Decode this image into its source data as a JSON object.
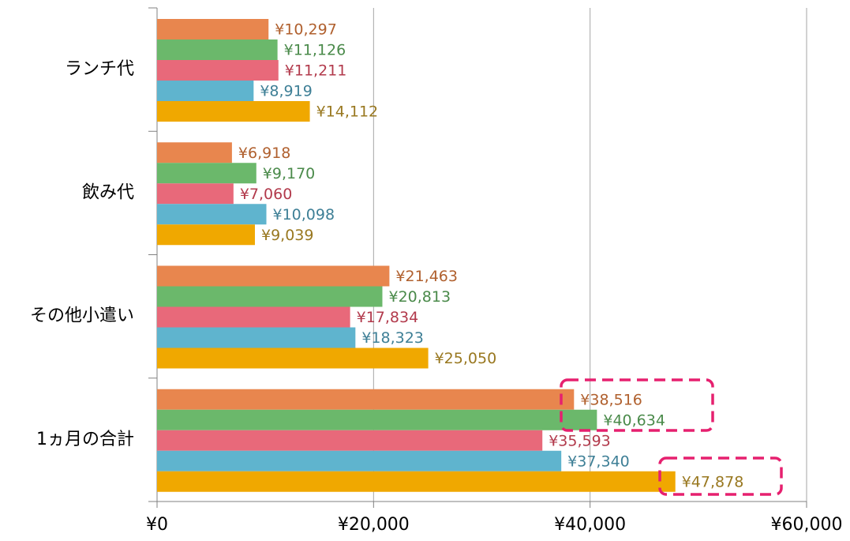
{
  "chart_data": {
    "type": "hbar",
    "categories": [
      "ランチ代",
      "飲み代",
      "その他小遣い",
      "1ヵ月の合計"
    ],
    "series": [
      {
        "color": "#E8864E",
        "label_color": "#B0602E",
        "values": [
          10297,
          6918,
          21463,
          38516
        ],
        "value_labels": [
          "¥10,297",
          "¥6,918",
          "¥21,463",
          "¥38,516"
        ]
      },
      {
        "color": "#6BB86B",
        "label_color": "#4A8A4A",
        "values": [
          11126,
          9170,
          20813,
          40634
        ],
        "value_labels": [
          "¥11,126",
          "¥9,170",
          "¥20,813",
          "¥40,634"
        ]
      },
      {
        "color": "#E8697A",
        "label_color": "#B23A4C",
        "values": [
          11211,
          7060,
          17834,
          35593
        ],
        "value_labels": [
          "¥11,211",
          "¥7,060",
          "¥17,834",
          "¥35,593"
        ]
      },
      {
        "color": "#5FB4CE",
        "label_color": "#3E7F96",
        "values": [
          8919,
          10098,
          18323,
          37340
        ],
        "value_labels": [
          "¥8,919",
          "¥10,098",
          "¥18,323",
          "¥37,340"
        ]
      },
      {
        "color": "#F0A800",
        "label_color": "#997820",
        "values": [
          14112,
          9039,
          25050,
          47878
        ],
        "value_labels": [
          "¥14,112",
          "¥9,039",
          "¥25,050",
          "¥47,878"
        ]
      }
    ],
    "xlim": [
      0,
      60000
    ],
    "xticks": [
      {
        "value": 0,
        "label": "¥0"
      },
      {
        "value": 20000,
        "label": "¥20,000"
      },
      {
        "value": 40000,
        "label": "¥40,000"
      },
      {
        "value": 60000,
        "label": "¥60,000"
      }
    ],
    "grid": true
  }
}
